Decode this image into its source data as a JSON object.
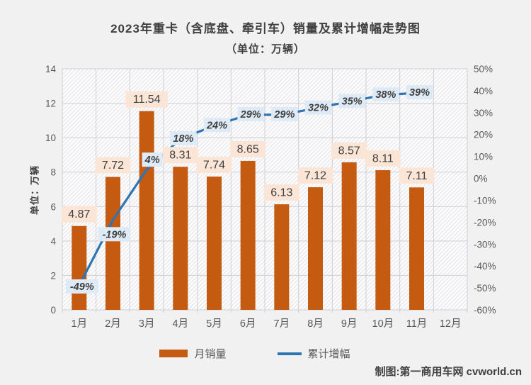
{
  "title": {
    "line1": "2023年重卡（含底盘、牵引车）销量及累计增幅走势图",
    "line2": "（单位：万辆）"
  },
  "y_axis_title": "单位：万辆",
  "legend": {
    "bar_label": "月销量",
    "line_label": "累计增幅"
  },
  "footer": "制图:第一商用车网 cvworld.cn",
  "colors": {
    "background": "#f1f1f2",
    "plot_bg": "#fdfdfe",
    "hatch_line": "#e5e5e9",
    "grid": "#cfd0d4",
    "axis_text": "#595959",
    "bar": "#C55A11",
    "bar_label_bg": "#FBE5D6",
    "line": "#2E75B6",
    "line_label_bg": "#DEEBF7",
    "label_text": "#404040"
  },
  "chart_data": {
    "type": "combo (bar + line)",
    "title": "2023年重卡（含底盘、牵引车）销量及累计增幅走势图（单位：万辆）",
    "categories": [
      "1月",
      "2月",
      "3月",
      "4月",
      "5月",
      "6月",
      "7月",
      "8月",
      "9月",
      "10月",
      "11月",
      "12月"
    ],
    "series": [
      {
        "name": "月销量",
        "type": "bar",
        "axis": "left",
        "color": "#C55A11",
        "values": [
          4.87,
          7.72,
          11.54,
          8.31,
          7.74,
          8.65,
          6.13,
          7.12,
          8.57,
          8.11,
          7.11,
          null
        ],
        "labels": [
          "4.87",
          "7.72",
          "11.54",
          "8.31",
          "7.74",
          "8.65",
          "6.13",
          "7.12",
          "8.57",
          "8.11",
          "7.11",
          null
        ]
      },
      {
        "name": "累计增幅",
        "type": "line",
        "axis": "right",
        "color": "#2E75B6",
        "values": [
          -49,
          -19,
          4,
          18,
          24,
          29,
          29,
          32,
          35,
          38,
          39,
          null
        ],
        "labels": [
          "-49%",
          "-19%",
          "4%",
          "18%",
          "24%",
          "29%",
          "29%",
          "32%",
          "35%",
          "38%",
          "39%",
          null
        ]
      }
    ],
    "left_axis": {
      "title": "单位：万辆",
      "min": 0,
      "max": 14,
      "step": 2,
      "ticks": [
        "0",
        "2",
        "4",
        "6",
        "8",
        "10",
        "12",
        "14"
      ]
    },
    "right_axis": {
      "min": -60,
      "max": 50,
      "step": 10,
      "suffix": "%",
      "ticks": [
        "50%",
        "40%",
        "30%",
        "20%",
        "10%",
        "0%",
        "-10%",
        "-20%",
        "-30%",
        "-40%",
        "-50%",
        "-60%"
      ]
    },
    "grid": true,
    "legend_position": "bottom"
  }
}
